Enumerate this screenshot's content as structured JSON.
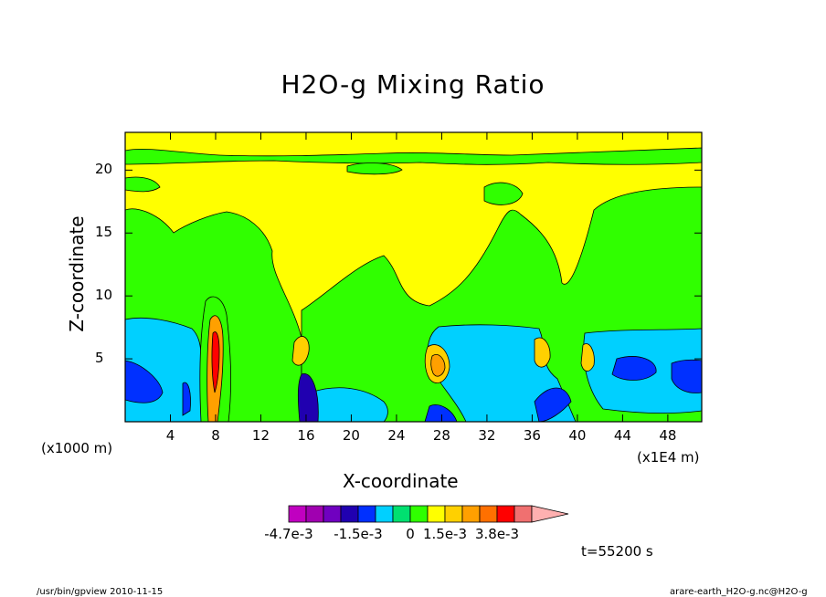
{
  "chart_data": {
    "type": "heatmap",
    "title": "H2O-g Mixing Ratio",
    "xlabel": "X-coordinate",
    "ylabel": "Z-coordinate",
    "x_unit_left": "(x1000 m)",
    "x_unit_right": "(x1E4 m)",
    "xlim": [
      0,
      51
    ],
    "ylim": [
      0,
      23
    ],
    "x_ticks": [
      4,
      8,
      12,
      16,
      20,
      24,
      28,
      32,
      36,
      40,
      44,
      48
    ],
    "y_ticks": [
      5,
      10,
      15,
      20
    ],
    "colorbar": {
      "colors": [
        "#c000c0",
        "#a000b0",
        "#7000c0",
        "#2000b0",
        "#0030ff",
        "#00d0ff",
        "#00e070",
        "#30ff00",
        "#ffff00",
        "#ffd000",
        "#ffa000",
        "#ff7000",
        "#ff0000",
        "#f07070",
        "#ffb0b0"
      ],
      "labels": [
        "-4.7e-3",
        "-1.5e-3",
        "0",
        "1.5e-3",
        "3.8e-3"
      ]
    },
    "time_label": "t=55200 s"
  },
  "footer": {
    "left": "/usr/bin/gpview  2010-11-15",
    "right": "arare-earth_H2O-g.nc@H2O-g"
  }
}
